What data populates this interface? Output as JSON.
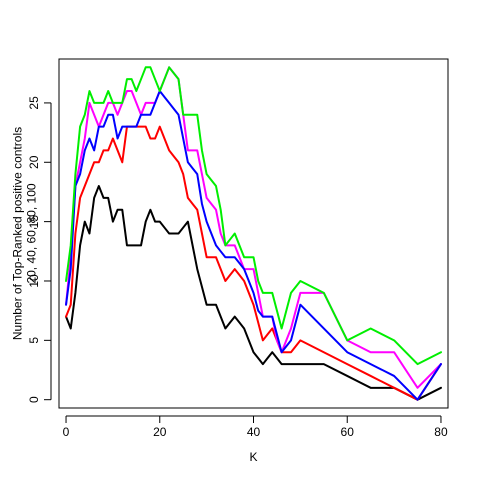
{
  "chart_data": {
    "type": "line",
    "title": "",
    "xlabel": "K",
    "ylabel_lines": [
      "Number of Top-Ranked positive controls",
      "20, 40, 60, 80, 100"
    ],
    "xlim": [
      -1.5,
      81.5
    ],
    "ylim": [
      -0.7,
      28.7
    ],
    "x_ticks": [
      0,
      20,
      40,
      60,
      80
    ],
    "y_ticks": [
      0,
      5,
      10,
      15,
      20,
      25
    ],
    "grid": false,
    "legend": "none",
    "series": [
      {
        "color": "#000000",
        "x": [
          0,
          1,
          2,
          3,
          4,
          5,
          6,
          7,
          8,
          9,
          10,
          11,
          12,
          13,
          14,
          15,
          16,
          17,
          18,
          19,
          20,
          21,
          22,
          23,
          24,
          25,
          26,
          27,
          28,
          29,
          30,
          31,
          32,
          33,
          34,
          35,
          36,
          37,
          38,
          39,
          40,
          41,
          42,
          43,
          44,
          45,
          46,
          48,
          50,
          55,
          60,
          65,
          70,
          75,
          80
        ],
        "y": [
          7,
          6,
          9,
          13,
          15,
          14,
          17,
          18,
          17,
          17,
          15,
          16,
          16,
          13,
          13,
          13,
          13,
          15,
          16,
          15,
          15,
          14.5,
          14,
          14,
          14,
          14.5,
          15,
          13,
          11,
          9.5,
          8,
          8,
          8,
          7,
          6,
          6.5,
          7,
          6.5,
          6,
          5,
          4,
          3.5,
          3,
          3.5,
          4,
          3.5,
          3,
          3,
          3,
          3,
          2,
          1,
          1,
          0,
          1
        ]
      },
      {
        "color": "#ff0000",
        "x": [
          0,
          1,
          2,
          3,
          4,
          5,
          6,
          7,
          8,
          9,
          10,
          11,
          12,
          13,
          14,
          15,
          16,
          17,
          18,
          19,
          20,
          21,
          22,
          23,
          24,
          25,
          26,
          27,
          28,
          29,
          30,
          31,
          32,
          33,
          34,
          35,
          36,
          37,
          38,
          39,
          40,
          41,
          42,
          43,
          44,
          45,
          46,
          48,
          50,
          55,
          60,
          65,
          70,
          75,
          80
        ],
        "y": [
          7,
          8,
          14,
          17,
          18,
          19,
          20,
          20,
          21,
          21,
          22,
          21,
          20,
          23,
          23,
          23,
          23,
          23,
          22,
          22,
          23,
          22,
          21,
          20.5,
          20,
          19,
          17,
          16.5,
          16,
          14,
          12,
          12,
          12,
          11,
          10,
          10.5,
          11,
          10.5,
          10,
          9,
          8,
          6.5,
          5,
          5.5,
          6,
          5,
          4,
          4,
          5,
          4,
          3,
          2,
          1,
          0,
          3
        ]
      },
      {
        "color": "#ff00ff",
        "x": [
          0,
          1,
          2,
          3,
          4,
          5,
          6,
          7,
          8,
          9,
          10,
          11,
          12,
          13,
          14,
          15,
          16,
          17,
          18,
          19,
          20,
          21,
          22,
          23,
          24,
          25,
          26,
          27,
          28,
          29,
          30,
          31,
          32,
          33,
          34,
          35,
          36,
          37,
          38,
          39,
          40,
          41,
          42,
          43,
          44,
          45,
          46,
          48,
          50,
          55,
          60,
          65,
          70,
          75,
          80
        ],
        "y": [
          8,
          12,
          18,
          20,
          22,
          25,
          24,
          23,
          24,
          25,
          25,
          24,
          25,
          26,
          26,
          25,
          24,
          25,
          25,
          25,
          26,
          27,
          28,
          27.5,
          27,
          24,
          21,
          21,
          21,
          19,
          17,
          16.5,
          16,
          14,
          13,
          13,
          13,
          12,
          11,
          11,
          11,
          9,
          7,
          7,
          7,
          5,
          4,
          6,
          9,
          9,
          5,
          4,
          4,
          1,
          3
        ]
      },
      {
        "color": "#0000ff",
        "x": [
          0,
          1,
          2,
          3,
          4,
          5,
          6,
          7,
          8,
          9,
          10,
          11,
          12,
          13,
          14,
          15,
          16,
          17,
          18,
          19,
          20,
          21,
          22,
          23,
          24,
          25,
          26,
          27,
          28,
          29,
          30,
          31,
          32,
          33,
          34,
          35,
          36,
          37,
          38,
          39,
          40,
          41,
          42,
          43,
          44,
          45,
          46,
          48,
          50,
          55,
          60,
          65,
          70,
          75,
          80
        ],
        "y": [
          8,
          11,
          18,
          19,
          21,
          22,
          21,
          23,
          23,
          24,
          24,
          22,
          23,
          23,
          23,
          23,
          24,
          24,
          24,
          25,
          26,
          25.5,
          25,
          24.5,
          24,
          22,
          20,
          19.5,
          19,
          16.5,
          15,
          14,
          13,
          12.5,
          12,
          12,
          12,
          11.5,
          11,
          10,
          9,
          7.5,
          7,
          7,
          7,
          5.5,
          4,
          5,
          8,
          6,
          4,
          3,
          2,
          0,
          3
        ]
      },
      {
        "color": "#00ee00",
        "x": [
          0,
          1,
          2,
          3,
          4,
          5,
          6,
          7,
          8,
          9,
          10,
          11,
          12,
          13,
          14,
          15,
          16,
          17,
          18,
          19,
          20,
          21,
          22,
          23,
          24,
          25,
          26,
          27,
          28,
          29,
          30,
          31,
          32,
          33,
          34,
          35,
          36,
          37,
          38,
          39,
          40,
          41,
          42,
          43,
          44,
          45,
          46,
          48,
          50,
          55,
          60,
          65,
          70,
          75,
          80
        ],
        "y": [
          10,
          13,
          19,
          23,
          24,
          26,
          25,
          25,
          25,
          26,
          25,
          25,
          25,
          27,
          27,
          26,
          27,
          28,
          28,
          27,
          26,
          27,
          28,
          27.5,
          27,
          24,
          24,
          24,
          24,
          21,
          19,
          18.5,
          18,
          16,
          13,
          13.5,
          14,
          13,
          12,
          12,
          12,
          10,
          9,
          9,
          9,
          7.5,
          6,
          9,
          10,
          9,
          5,
          6,
          5,
          3,
          4
        ]
      }
    ]
  }
}
